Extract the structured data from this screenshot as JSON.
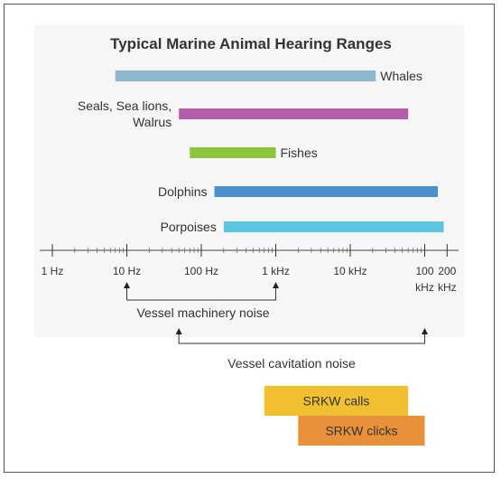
{
  "chart_data": {
    "type": "range-bar",
    "title": "Typical Marine Animal Hearing Ranges",
    "x_scale": "log",
    "xlim_hz": [
      1,
      200000
    ],
    "ticks": [
      {
        "value": 1,
        "label": "1 Hz"
      },
      {
        "value": 10,
        "label": "10 Hz"
      },
      {
        "value": 100,
        "label": "100 Hz"
      },
      {
        "value": 1000,
        "label": "1 kHz"
      },
      {
        "value": 10000,
        "label": "10 kHz"
      },
      {
        "value": 100000,
        "label": "100\nkHz"
      },
      {
        "value": 200000,
        "label": "200\nkHz"
      }
    ],
    "ranges": [
      {
        "name": "Whales",
        "low": 7,
        "high": 22000,
        "color": "#8fb7cc",
        "label_side": "right"
      },
      {
        "name": "Seals, Sea lions,\nWalrus",
        "low": 50,
        "high": 60000,
        "color": "#b35ea8",
        "label_side": "left"
      },
      {
        "name": "Fishes",
        "low": 70,
        "high": 1000,
        "color": "#8cc63f",
        "label_side": "right"
      },
      {
        "name": "Dolphins",
        "low": 150,
        "high": 150000,
        "color": "#4a90cc",
        "label_side": "left"
      },
      {
        "name": "Porpoises",
        "low": 200,
        "high": 180000,
        "color": "#5bc4e0",
        "label_side": "left"
      }
    ],
    "noise_ranges": [
      {
        "name": "Vessel machinery noise",
        "low": 10,
        "high": 1000
      },
      {
        "name": "Vessel cavitation noise",
        "low": 50,
        "high": 100000
      }
    ],
    "srkw_ranges": [
      {
        "name": "SRKW calls",
        "low": 700,
        "high": 60000,
        "color": "#f0c030"
      },
      {
        "name": "SRKW clicks",
        "low": 2000,
        "high": 100000,
        "color": "#e8903a"
      }
    ]
  }
}
